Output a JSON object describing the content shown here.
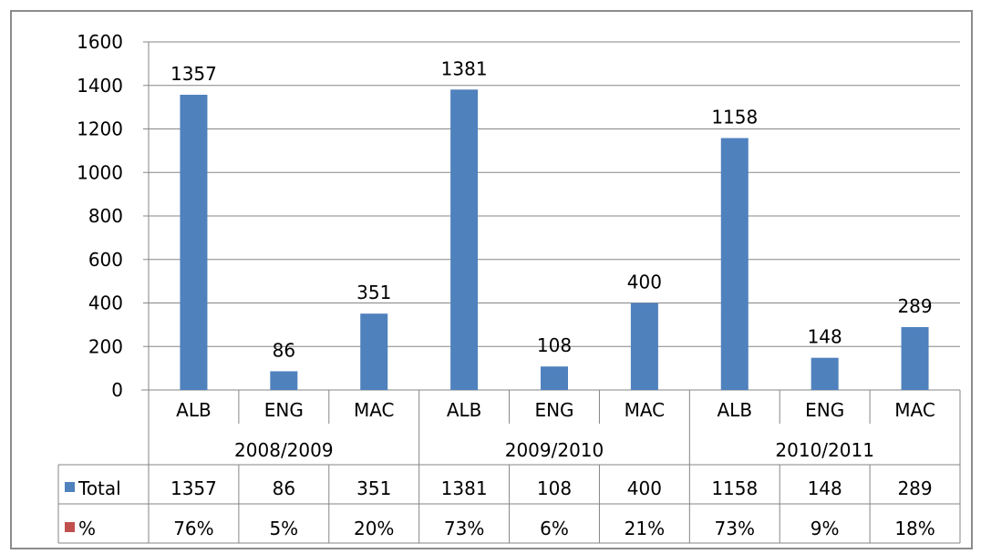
{
  "chart_data": {
    "type": "bar",
    "title": "",
    "xlabel": "",
    "ylabel": "",
    "ylim": [
      0,
      1600
    ],
    "yticks": [
      0,
      200,
      400,
      600,
      800,
      1000,
      1200,
      1400,
      1600
    ],
    "grid": true,
    "legend": "in data table",
    "groups": [
      {
        "label": "2008/2009",
        "categories": [
          "ALB",
          "ENG",
          "MAC"
        ],
        "values": [
          1357,
          86,
          351
        ],
        "percent": [
          "76%",
          "5%",
          "20%"
        ]
      },
      {
        "label": "2009/2010",
        "categories": [
          "ALB",
          "ENG",
          "MAC"
        ],
        "values": [
          1381,
          108,
          400
        ],
        "percent": [
          "73%",
          "6%",
          "21%"
        ]
      },
      {
        "label": "2010/2011",
        "categories": [
          "ALB",
          "ENG",
          "MAC"
        ],
        "values": [
          1158,
          148,
          289
        ],
        "percent": [
          "73%",
          "9%",
          "18%"
        ]
      }
    ],
    "series": [
      {
        "name": "Total",
        "color": "#4f81bd"
      },
      {
        "name": "%",
        "color": "#c0504d"
      }
    ]
  }
}
